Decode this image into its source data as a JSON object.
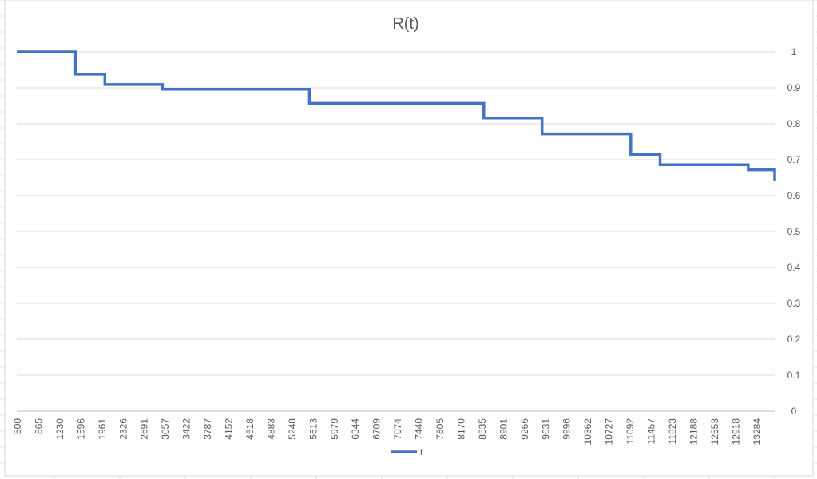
{
  "chart_data": {
    "type": "line",
    "title": "R(t)",
    "xlabel": "",
    "ylabel": "",
    "x_tick_labels": [
      "500",
      "865",
      "1230",
      "1596",
      "1961",
      "2326",
      "2691",
      "3057",
      "3422",
      "3787",
      "4152",
      "4518",
      "4883",
      "5248",
      "5613",
      "5979",
      "6344",
      "6709",
      "7074",
      "7440",
      "7805",
      "8170",
      "8535",
      "8901",
      "9266",
      "9631",
      "9996",
      "10362",
      "10727",
      "11092",
      "11457",
      "11823",
      "12188",
      "12553",
      "12918",
      "13284"
    ],
    "y_tick_labels": [
      "0",
      "0.1",
      "0.2",
      "0.3",
      "0.4",
      "0.5",
      "0.6",
      "0.7",
      "0.8",
      "0.9",
      "1"
    ],
    "xlim": [
      500,
      13400
    ],
    "ylim": [
      0,
      1
    ],
    "y_axis_side": "right",
    "grid": true,
    "legend_position": "bottom",
    "step": true,
    "series": [
      {
        "name": "r",
        "color": "#4472C4",
        "points": [
          [
            500,
            1.0
          ],
          [
            1500,
            1.0
          ],
          [
            1500,
            0.938
          ],
          [
            2000,
            0.938
          ],
          [
            2000,
            0.909
          ],
          [
            2980,
            0.909
          ],
          [
            2980,
            0.896
          ],
          [
            5480,
            0.896
          ],
          [
            5480,
            0.857
          ],
          [
            8450,
            0.857
          ],
          [
            8450,
            0.816
          ],
          [
            9440,
            0.816
          ],
          [
            9440,
            0.772
          ],
          [
            10950,
            0.772
          ],
          [
            10950,
            0.714
          ],
          [
            11450,
            0.714
          ],
          [
            11450,
            0.686
          ],
          [
            12950,
            0.686
          ],
          [
            12950,
            0.672
          ],
          [
            13450,
            0.672
          ],
          [
            13450,
            0.657
          ],
          [
            13900,
            0.657
          ],
          [
            13900,
            0.64
          ]
        ]
      }
    ]
  }
}
